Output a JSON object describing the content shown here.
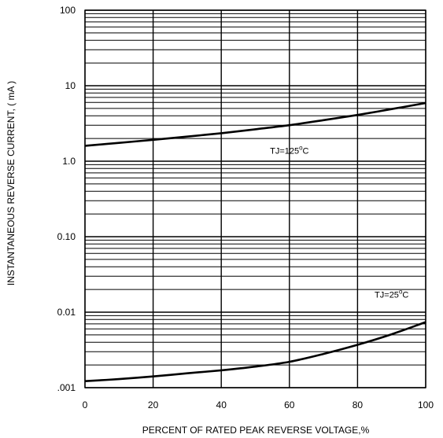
{
  "chart_data": {
    "type": "line",
    "xlabel": "PERCENT OF RATED PEAK REVERSE VOLTAGE,%",
    "ylabel": "INSTANTANEOUS REVERSE CURRENT, ( mA )",
    "xlim": [
      0,
      100
    ],
    "ylim": [
      0.001,
      100
    ],
    "yscale": "log",
    "grid": true,
    "x_ticks": [
      {
        "value": 0,
        "label": "0"
      },
      {
        "value": 20,
        "label": "20"
      },
      {
        "value": 40,
        "label": "40"
      },
      {
        "value": 60,
        "label": "60"
      },
      {
        "value": 80,
        "label": "80"
      },
      {
        "value": 100,
        "label": "100"
      }
    ],
    "y_ticks": [
      {
        "value": 100,
        "label": "100"
      },
      {
        "value": 10,
        "label": "10"
      },
      {
        "value": 1,
        "label": "1.0"
      },
      {
        "value": 0.1,
        "label": "0.10"
      },
      {
        "value": 0.01,
        "label": "0.01"
      },
      {
        "value": 0.001,
        "label": ".001"
      }
    ],
    "series": [
      {
        "name": "TJ=125°C",
        "label": {
          "prefix": "TJ=125",
          "degree": "o",
          "suffix": "C"
        },
        "label_at": {
          "x": 60,
          "y": 1.25
        },
        "x": [
          0,
          10,
          20,
          30,
          40,
          50,
          60,
          70,
          80,
          90,
          100
        ],
        "y": [
          1.6,
          1.75,
          1.92,
          2.12,
          2.35,
          2.65,
          3.0,
          3.5,
          4.1,
          4.9,
          5.9
        ]
      },
      {
        "name": "TJ=25°C",
        "label": {
          "prefix": "TJ=25",
          "degree": "o",
          "suffix": "C"
        },
        "label_at": {
          "x": 90,
          "y": 0.0155
        },
        "x": [
          0,
          10,
          20,
          30,
          40,
          50,
          60,
          70,
          80,
          90,
          100
        ],
        "y": [
          0.00122,
          0.0013,
          0.00141,
          0.00155,
          0.0017,
          0.0019,
          0.0022,
          0.0028,
          0.0037,
          0.0051,
          0.0074
        ]
      }
    ]
  }
}
